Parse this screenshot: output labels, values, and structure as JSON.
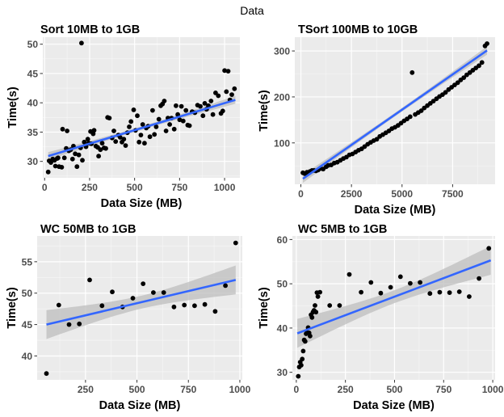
{
  "figure_title": "Data",
  "chart_data": [
    {
      "type": "scatter",
      "title": "Sort 10MB to 1GB",
      "xlabel": "Data Size (MB)",
      "ylabel": "Time(s)",
      "xlim": [
        -10,
        1085
      ],
      "ylim": [
        27.2,
        51.2
      ],
      "xticks": [
        0,
        250,
        500,
        750,
        1000
      ],
      "yticks": [
        30,
        35,
        40,
        45,
        50
      ],
      "grid": true,
      "smooth": {
        "method": "linear",
        "confidence_band": true,
        "x": [
          20,
          1060
        ],
        "y": [
          30.9,
          40.5
        ]
      },
      "points": [
        [
          20,
          28.2
        ],
        [
          25,
          30.1
        ],
        [
          35,
          29.8
        ],
        [
          45,
          30.4
        ],
        [
          55,
          30.2
        ],
        [
          60,
          29.2
        ],
        [
          70,
          30.5
        ],
        [
          75,
          30.6
        ],
        [
          80,
          29.1
        ],
        [
          95,
          29.0
        ],
        [
          100,
          35.5
        ],
        [
          110,
          30.6
        ],
        [
          120,
          32.2
        ],
        [
          125,
          35.2
        ],
        [
          135,
          31.8
        ],
        [
          145,
          32.0
        ],
        [
          155,
          30.4
        ],
        [
          160,
          32.6
        ],
        [
          170,
          31.3
        ],
        [
          180,
          29.1
        ],
        [
          190,
          31.1
        ],
        [
          200,
          32.3
        ],
        [
          205,
          50.2
        ],
        [
          210,
          30.2
        ],
        [
          220,
          33.3
        ],
        [
          230,
          32.5
        ],
        [
          240,
          33.8
        ],
        [
          245,
          33.1
        ],
        [
          255,
          35.1
        ],
        [
          260,
          33.0
        ],
        [
          270,
          34.7
        ],
        [
          275,
          35.3
        ],
        [
          285,
          32.6
        ],
        [
          295,
          32.4
        ],
        [
          300,
          30.9
        ],
        [
          310,
          32.0
        ],
        [
          320,
          33.1
        ],
        [
          330,
          32.3
        ],
        [
          340,
          32.2
        ],
        [
          350,
          37.5
        ],
        [
          360,
          37.4
        ],
        [
          375,
          34.0
        ],
        [
          385,
          35.2
        ],
        [
          395,
          33.4
        ],
        [
          410,
          34.5
        ],
        [
          420,
          34.1
        ],
        [
          430,
          33.3
        ],
        [
          440,
          33.8
        ],
        [
          450,
          32.7
        ],
        [
          460,
          34.9
        ],
        [
          470,
          35.9
        ],
        [
          480,
          36.8
        ],
        [
          495,
          38.8
        ],
        [
          505,
          35.3
        ],
        [
          515,
          37.8
        ],
        [
          525,
          33.3
        ],
        [
          535,
          34.5
        ],
        [
          545,
          36.3
        ],
        [
          555,
          33.1
        ],
        [
          565,
          35.7
        ],
        [
          575,
          36.0
        ],
        [
          585,
          34.2
        ],
        [
          600,
          38.7
        ],
        [
          610,
          34.6
        ],
        [
          620,
          35.9
        ],
        [
          635,
          37.2
        ],
        [
          645,
          39.5
        ],
        [
          655,
          39.8
        ],
        [
          665,
          40.3
        ],
        [
          675,
          35.2
        ],
        [
          685,
          37.4
        ],
        [
          695,
          36.3
        ],
        [
          705,
          37.4
        ],
        [
          720,
          35.5
        ],
        [
          730,
          39.5
        ],
        [
          740,
          38.0
        ],
        [
          750,
          37.1
        ],
        [
          760,
          39.4
        ],
        [
          770,
          36.9
        ],
        [
          785,
          38.7
        ],
        [
          795,
          36.2
        ],
        [
          805,
          36.1
        ],
        [
          820,
          38.5
        ],
        [
          835,
          38.3
        ],
        [
          850,
          39.6
        ],
        [
          865,
          39.4
        ],
        [
          880,
          37.8
        ],
        [
          890,
          39.9
        ],
        [
          900,
          38.9
        ],
        [
          910,
          39.5
        ],
        [
          925,
          40.3
        ],
        [
          935,
          38.0
        ],
        [
          950,
          41.7
        ],
        [
          965,
          41.2
        ],
        [
          980,
          38.2
        ],
        [
          990,
          38.6
        ],
        [
          1000,
          45.5
        ],
        [
          1010,
          41.9
        ],
        [
          1020,
          45.4
        ],
        [
          1030,
          40.5
        ],
        [
          1040,
          41.4
        ],
        [
          1055,
          42.4
        ]
      ]
    },
    {
      "type": "scatter",
      "title": "TSort 100MB to 10GB",
      "xlabel": "Data Size (MB)",
      "ylabel": "Time(s)",
      "xlim": [
        -300,
        9600
      ],
      "ylim": [
        10,
        330
      ],
      "xticks": [
        0,
        2500,
        5000,
        7500
      ],
      "yticks": [
        100,
        200,
        300
      ],
      "grid": true,
      "smooth": {
        "method": "linear",
        "confidence_band": true,
        "x": [
          100,
          9200
        ],
        "y": [
          22,
          301
        ]
      },
      "points": [
        [
          100,
          35
        ],
        [
          200,
          33
        ],
        [
          300,
          36
        ],
        [
          450,
          38
        ],
        [
          550,
          40
        ],
        [
          650,
          40
        ],
        [
          750,
          39
        ],
        [
          850,
          41
        ],
        [
          950,
          44
        ],
        [
          1100,
          43
        ],
        [
          1250,
          48
        ],
        [
          1350,
          51
        ],
        [
          1500,
          52
        ],
        [
          1650,
          56
        ],
        [
          1800,
          58
        ],
        [
          1950,
          62
        ],
        [
          2100,
          66
        ],
        [
          2250,
          69
        ],
        [
          2400,
          74
        ],
        [
          2550,
          76
        ],
        [
          2700,
          80
        ],
        [
          2850,
          84
        ],
        [
          3000,
          87
        ],
        [
          3150,
          92
        ],
        [
          3300,
          97
        ],
        [
          3450,
          101
        ],
        [
          3600,
          105
        ],
        [
          3750,
          108
        ],
        [
          3900,
          114
        ],
        [
          4050,
          118
        ],
        [
          4200,
          122
        ],
        [
          4350,
          126
        ],
        [
          4500,
          131
        ],
        [
          4650,
          134
        ],
        [
          4800,
          138
        ],
        [
          4950,
          143
        ],
        [
          5100,
          148
        ],
        [
          5250,
          152
        ],
        [
          5400,
          157
        ],
        [
          5500,
          253
        ],
        [
          5650,
          162
        ],
        [
          5800,
          166
        ],
        [
          5950,
          170
        ],
        [
          6100,
          176
        ],
        [
          6250,
          181
        ],
        [
          6400,
          186
        ],
        [
          6550,
          191
        ],
        [
          6700,
          196
        ],
        [
          6850,
          201
        ],
        [
          7000,
          205
        ],
        [
          7150,
          210
        ],
        [
          7300,
          216
        ],
        [
          7450,
          221
        ],
        [
          7600,
          226
        ],
        [
          7750,
          231
        ],
        [
          7900,
          237
        ],
        [
          8050,
          242
        ],
        [
          8200,
          248
        ],
        [
          8350,
          253
        ],
        [
          8500,
          258
        ],
        [
          8650,
          263
        ],
        [
          8800,
          268
        ],
        [
          8950,
          275
        ],
        [
          9100,
          311
        ],
        [
          9200,
          316
        ]
      ]
    },
    {
      "type": "scatter",
      "title": "WC 50MB to 1GB",
      "xlabel": "Data Size (MB)",
      "ylabel": "Time(s)",
      "xlim": [
        15,
        1012
      ],
      "ylim": [
        36.2,
        59.1
      ],
      "xticks": [
        250,
        500,
        750,
        1000
      ],
      "yticks": [
        40,
        45,
        50,
        55
      ],
      "grid": true,
      "smooth": {
        "method": "linear",
        "confidence_band": true,
        "x": [
          60,
          980
        ],
        "y": [
          45.0,
          52.1
        ]
      },
      "points": [
        [
          60,
          37.2
        ],
        [
          120,
          48.1
        ],
        [
          170,
          45.0
        ],
        [
          220,
          45.1
        ],
        [
          270,
          52.1
        ],
        [
          330,
          48.0
        ],
        [
          380,
          50.2
        ],
        [
          430,
          47.8
        ],
        [
          480,
          49.2
        ],
        [
          530,
          51.5
        ],
        [
          580,
          50.1
        ],
        [
          630,
          50.1
        ],
        [
          680,
          47.8
        ],
        [
          730,
          48.1
        ],
        [
          780,
          48.0
        ],
        [
          830,
          48.2
        ],
        [
          880,
          47.1
        ],
        [
          930,
          51.2
        ],
        [
          980,
          58.0
        ]
      ]
    },
    {
      "type": "scatter",
      "title": "WC 5MB to 1GB",
      "xlabel": "Data Size (MB)",
      "ylabel": "Time(s)",
      "xlim": [
        -20,
        1012
      ],
      "ylim": [
        28.3,
        60.8
      ],
      "xticks": [
        0,
        250,
        500,
        750,
        1000
      ],
      "yticks": [
        30,
        40,
        50,
        60
      ],
      "grid": true,
      "smooth": {
        "method": "linear",
        "confidence_band": true,
        "x": [
          5,
          990
        ],
        "y": [
          38.8,
          55.3
        ]
      },
      "points": [
        [
          10,
          29.1
        ],
        [
          15,
          31.2
        ],
        [
          20,
          32.3
        ],
        [
          25,
          31.6
        ],
        [
          30,
          33.0
        ],
        [
          35,
          34.8
        ],
        [
          40,
          37.3
        ],
        [
          45,
          37.0
        ],
        [
          50,
          38.7
        ],
        [
          55,
          39.0
        ],
        [
          60,
          40.1
        ],
        [
          65,
          38.9
        ],
        [
          70,
          38.2
        ],
        [
          75,
          43.0
        ],
        [
          80,
          42.4
        ],
        [
          85,
          43.6
        ],
        [
          90,
          44.0
        ],
        [
          95,
          45.1
        ],
        [
          100,
          43.6
        ],
        [
          105,
          48.0
        ],
        [
          110,
          47.1
        ],
        [
          120,
          48.1
        ],
        [
          170,
          45.1
        ],
        [
          220,
          45.1
        ],
        [
          270,
          52.1
        ],
        [
          330,
          48.1
        ],
        [
          380,
          50.3
        ],
        [
          430,
          47.9
        ],
        [
          480,
          49.2
        ],
        [
          530,
          51.6
        ],
        [
          580,
          50.1
        ],
        [
          630,
          50.3
        ],
        [
          680,
          47.8
        ],
        [
          730,
          48.1
        ],
        [
          780,
          48.0
        ],
        [
          830,
          48.2
        ],
        [
          880,
          47.1
        ],
        [
          930,
          51.2
        ],
        [
          980,
          58.0
        ]
      ]
    }
  ]
}
